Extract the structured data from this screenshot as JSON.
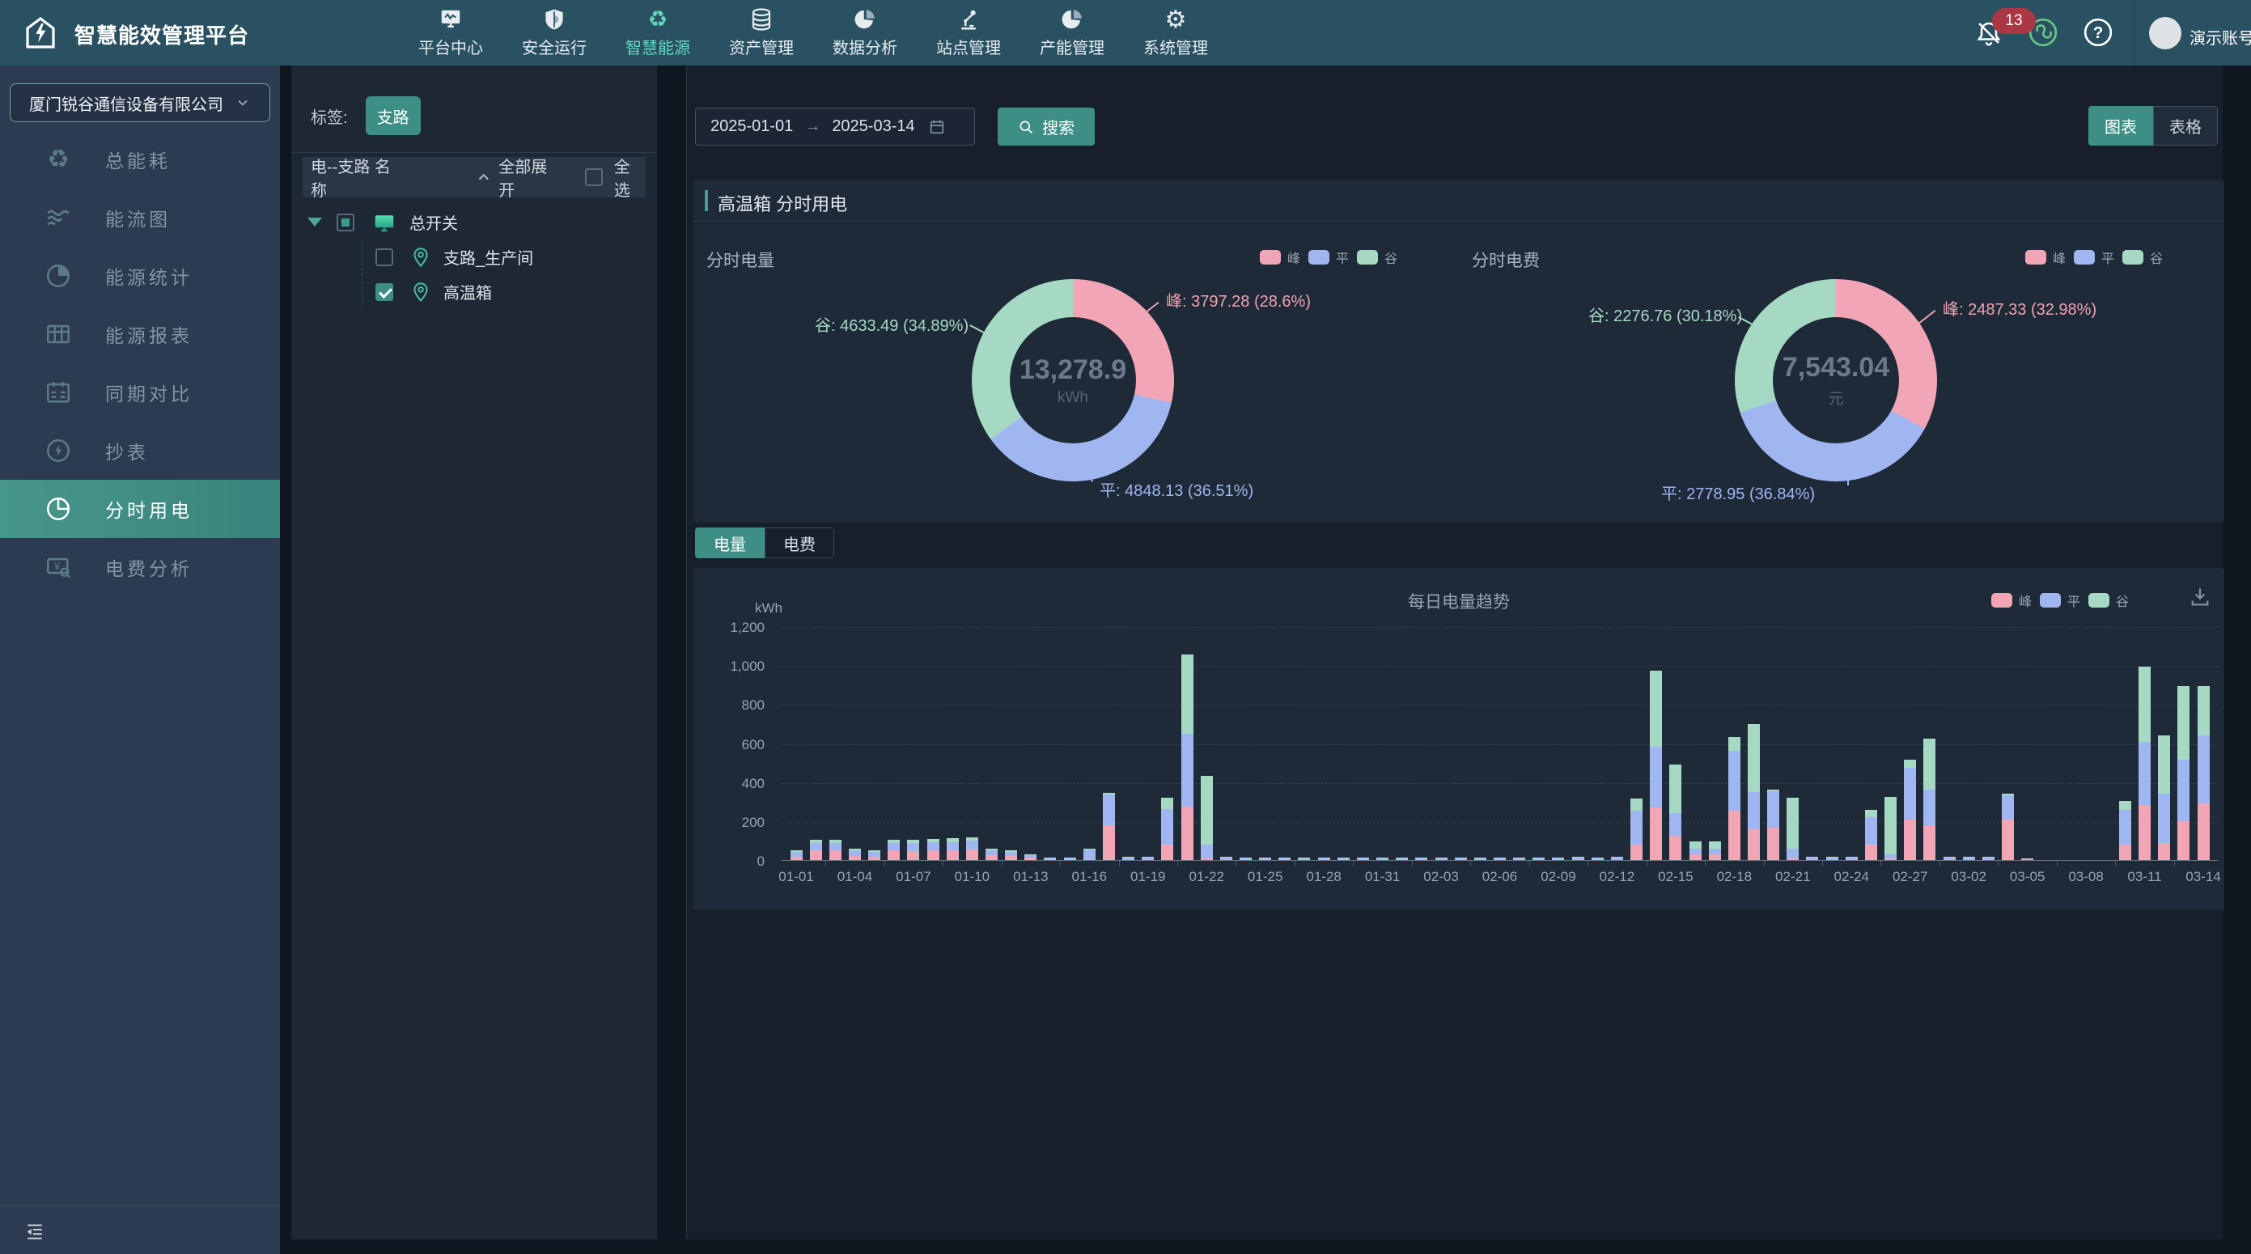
{
  "topbar": {
    "title": "智慧能效管理平台",
    "nav": [
      {
        "label": "平台中心",
        "icon": "platform-center-icon",
        "active": false
      },
      {
        "label": "安全运行",
        "icon": "safe-run-icon",
        "active": false
      },
      {
        "label": "智慧能源",
        "icon": "smart-energy-icon",
        "active": true
      },
      {
        "label": "资产管理",
        "icon": "asset-icon",
        "active": false
      },
      {
        "label": "数据分析",
        "icon": "data-analysis-icon",
        "active": false
      },
      {
        "label": "站点管理",
        "icon": "site-icon",
        "active": false
      },
      {
        "label": "产能管理",
        "icon": "capacity-icon",
        "active": false
      },
      {
        "label": "系统管理",
        "icon": "system-icon",
        "active": false
      }
    ],
    "badge_count": "13",
    "account": "演示账号"
  },
  "sidebar": {
    "company": "厦门锐谷通信设备有限公司",
    "items": [
      {
        "label": "总能耗",
        "icon": "recycle-icon",
        "active": false
      },
      {
        "label": "能流图",
        "icon": "flow-icon",
        "active": false
      },
      {
        "label": "能源统计",
        "icon": "stats-pie-icon",
        "active": false
      },
      {
        "label": "能源报表",
        "icon": "report-table-icon",
        "active": false
      },
      {
        "label": "同期对比",
        "icon": "calendar-compare-icon",
        "active": false
      },
      {
        "label": "抄表",
        "icon": "meter-bolt-icon",
        "active": false
      },
      {
        "label": "分时用电",
        "icon": "tou-pie-icon",
        "active": true
      },
      {
        "label": "电费分析",
        "icon": "cost-analysis-icon",
        "active": false
      }
    ]
  },
  "tree": {
    "tag_label": "标签:",
    "tag_value": "支路",
    "header": "电--支路 名称",
    "expand_all": "全部展开",
    "select_all": "全选",
    "root": {
      "label": "总开关",
      "checkbox": "indeterminate"
    },
    "children": [
      {
        "label": "支路_生产间",
        "checkbox": "unchecked"
      },
      {
        "label": "高温箱",
        "checkbox": "checked"
      }
    ]
  },
  "toolbar": {
    "date_start": "2025-01-01",
    "date_arrow": "→",
    "date_end": "2025-03-14",
    "search_label": "搜索",
    "view_chart": "图表",
    "view_table": "表格"
  },
  "panel": {
    "title": "高温箱 分时用电"
  },
  "legend_items": [
    {
      "label": "峰",
      "color": "#f2a6b5"
    },
    {
      "label": "平",
      "color": "#9fb6f0"
    },
    {
      "label": "谷",
      "color": "#a5d9c4"
    }
  ],
  "energy_donut": {
    "title": "分时电量",
    "value": "13,278.9",
    "unit": "kWh",
    "peak_label": "峰: 3797.28 (28.6%)",
    "flat_label": "平: 4848.13 (36.51%)",
    "valley_label": "谷: 4633.49 (34.89%)"
  },
  "cost_donut": {
    "title": "分时电费",
    "value": "7,543.04",
    "unit": "元",
    "peak_label": "峰: 2487.33 (32.98%)",
    "flat_label": "平: 2778.95 (36.84%)",
    "valley_label": "谷: 2276.76 (30.18%)"
  },
  "tabs": {
    "energy": "电量",
    "cost": "电费"
  },
  "trend": {
    "title": "每日电量趋势",
    "ylabel": "kWh"
  },
  "chart_data": [
    {
      "type": "pie",
      "title": "分时电量",
      "unit": "kWh",
      "total": 13278.9,
      "slices": [
        {
          "name": "峰",
          "value": 3797.28,
          "pct": 28.6,
          "color": "#f2a6b5"
        },
        {
          "name": "平",
          "value": 4848.13,
          "pct": 36.51,
          "color": "#9fb6f0"
        },
        {
          "name": "谷",
          "value": 4633.49,
          "pct": 34.89,
          "color": "#a5d9c4"
        }
      ]
    },
    {
      "type": "pie",
      "title": "分时电费",
      "unit": "元",
      "total": 7543.04,
      "slices": [
        {
          "name": "峰",
          "value": 2487.33,
          "pct": 32.98,
          "color": "#f2a6b5"
        },
        {
          "name": "平",
          "value": 2778.95,
          "pct": 36.84,
          "color": "#9fb6f0"
        },
        {
          "name": "谷",
          "value": 2276.76,
          "pct": 30.18,
          "color": "#a5d9c4"
        }
      ]
    },
    {
      "type": "bar",
      "stacked": true,
      "title": "每日电量趋势",
      "ylabel": "kWh",
      "ylim": [
        0,
        1200
      ],
      "ytick_step": 200,
      "yticks": [
        "0",
        "200",
        "400",
        "600",
        "800",
        "1,000",
        "1,200"
      ],
      "x_label_every": 3,
      "x": [
        "01-01",
        "01-02",
        "01-03",
        "01-04",
        "01-05",
        "01-06",
        "01-07",
        "01-08",
        "01-09",
        "01-10",
        "01-11",
        "01-12",
        "01-13",
        "01-14",
        "01-15",
        "01-16",
        "01-17",
        "01-18",
        "01-19",
        "01-20",
        "01-21",
        "01-22",
        "01-23",
        "01-24",
        "01-25",
        "01-26",
        "01-27",
        "01-28",
        "01-29",
        "01-30",
        "01-31",
        "02-01",
        "02-02",
        "02-03",
        "02-04",
        "02-05",
        "02-06",
        "02-07",
        "02-08",
        "02-09",
        "02-10",
        "02-11",
        "02-12",
        "02-13",
        "02-14",
        "02-15",
        "02-16",
        "02-17",
        "02-18",
        "02-19",
        "02-20",
        "02-21",
        "02-22",
        "02-23",
        "02-24",
        "02-25",
        "02-26",
        "02-27",
        "02-28",
        "03-01",
        "03-02",
        "03-03",
        "03-04",
        "03-05",
        "03-06",
        "03-07",
        "03-08",
        "03-09",
        "03-10",
        "03-11",
        "03-12",
        "03-13",
        "03-14"
      ],
      "series": [
        {
          "name": "峰",
          "color": "#f2a6b5",
          "values": [
            15,
            50,
            48,
            20,
            17,
            48,
            45,
            50,
            50,
            52,
            25,
            20,
            12,
            2,
            3,
            6,
            180,
            5,
            5,
            80,
            275,
            10,
            5,
            2,
            2,
            1,
            1,
            1,
            1,
            1,
            1,
            1,
            2,
            2,
            2,
            3,
            5,
            5,
            5,
            5,
            6,
            5,
            6,
            80,
            270,
            125,
            30,
            30,
            255,
            158,
            165,
            8,
            5,
            5,
            5,
            81,
            8,
            207,
            180,
            5,
            6,
            6,
            207,
            8,
            0,
            0,
            0,
            0,
            81,
            284,
            88,
            200,
            290
          ]
        },
        {
          "name": "平",
          "color": "#9fb6f0",
          "values": [
            25,
            38,
            38,
            28,
            23,
            40,
            42,
            40,
            43,
            46,
            25,
            23,
            12,
            2,
            3,
            48,
            158,
            6,
            6,
            182,
            372,
            68,
            6,
            1,
            1,
            1,
            1,
            1,
            1,
            1,
            1,
            1,
            1,
            1,
            1,
            3,
            5,
            5,
            5,
            5,
            6,
            5,
            6,
            175,
            310,
            115,
            30,
            30,
            305,
            189,
            189,
            50,
            8,
            6,
            8,
            140,
            20,
            266,
            180,
            6,
            7,
            7,
            126,
            0,
            0,
            0,
            0,
            0,
            175,
            322,
            252,
            315,
            350
          ]
        },
        {
          "name": "谷",
          "color": "#a5d9c4",
          "values": [
            10,
            14,
            16,
            10,
            10,
            15,
            17,
            18,
            19,
            20,
            10,
            7,
            6,
            1,
            2,
            3,
            7,
            7,
            5,
            56,
            408,
            352,
            4,
            1,
            1,
            1,
            1,
            1,
            1,
            1,
            1,
            1,
            1,
            1,
            1,
            2,
            3,
            3,
            3,
            3,
            4,
            3,
            4,
            60,
            390,
            250,
            35,
            35,
            70,
            350,
            7,
            260,
            5,
            4,
            5,
            35,
            298,
            42,
            265,
            4,
            5,
            5,
            7,
            0,
            0,
            0,
            0,
            0,
            49,
            385,
            300,
            378,
            252
          ]
        }
      ]
    }
  ]
}
